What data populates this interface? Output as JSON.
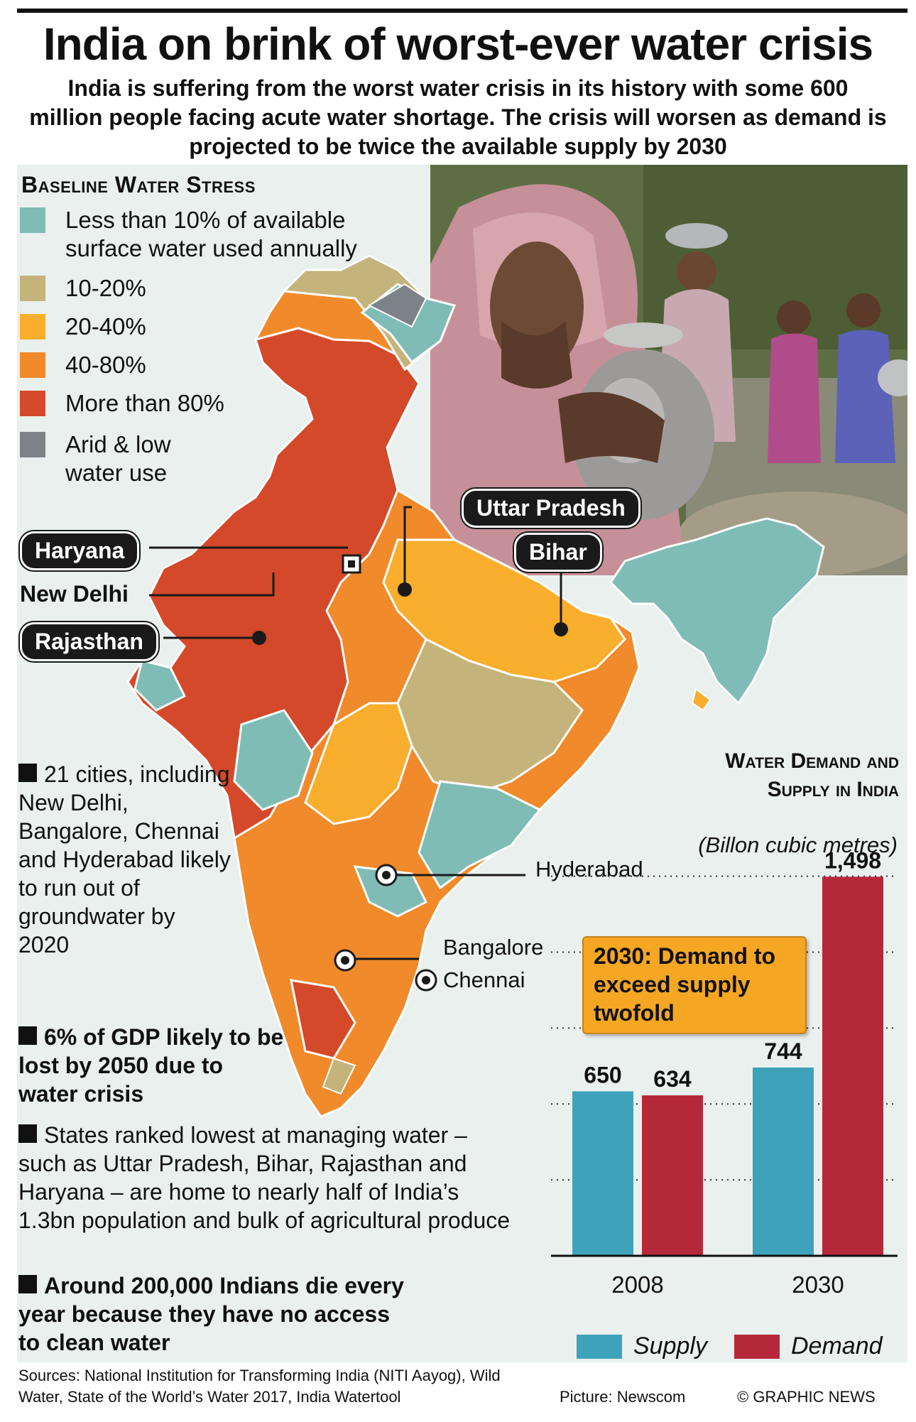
{
  "header": {
    "title": "India on brink of worst-ever water crisis",
    "subtitle": "India is suffering from the worst water crisis in its history with some 600 million people facing acute water shortage. The crisis will worsen as demand is projected to be twice the available supply by 2030"
  },
  "legend": {
    "title": "Baseline Water Stress",
    "items": [
      {
        "label": "Less than 10% of available surface water used annually",
        "color": "#7fbcb5"
      },
      {
        "label": "10-20%",
        "color": "#c4b47c"
      },
      {
        "label": "20-40%",
        "color": "#f9ae2e"
      },
      {
        "label": "40-80%",
        "color": "#f08a2a"
      },
      {
        "label": "More than 80%",
        "color": "#d4492a"
      },
      {
        "label": "Arid & low water use",
        "color": "#7d8288"
      }
    ]
  },
  "map": {
    "states": {
      "haryana": "Haryana",
      "new_delhi": "New Delhi",
      "rajasthan": "Rajasthan",
      "uttar_pradesh": "Uttar Pradesh",
      "bihar": "Bihar"
    },
    "cities": {
      "hyderabad": "Hyderabad",
      "bangalore": "Bangalore",
      "chennai": "Chennai"
    }
  },
  "facts": {
    "f1": "21 cities, including New Delhi, Bangalore, Chennai and Hyderabad likely to run out of groundwater by 2020",
    "f2": "6% of GDP likely to be lost by 2050 due to water crisis",
    "f3": "States ranked lowest at managing water – such as Uttar Pradesh, Bihar, Rajasthan and Haryana – are home to nearly half of India’s 1.3bn population and bulk of agricultural produce",
    "f4": "Around 200,000 Indians die every year because they have no access to clean water"
  },
  "chart_data": {
    "type": "bar",
    "title": "Water Demand and Supply in India",
    "unit": "(Billon cubic metres)",
    "categories": [
      "2008",
      "2030"
    ],
    "series": [
      {
        "name": "Supply",
        "values": [
          650,
          744
        ],
        "color": "#3ea3ba"
      },
      {
        "name": "Demand",
        "values": [
          634,
          1498
        ],
        "color": "#b5283a"
      }
    ],
    "value_labels": [
      "650",
      "634",
      "744",
      "1,498"
    ],
    "ylim": [
      0,
      1600
    ],
    "grid": "dotted horizontal",
    "annotation": "2030: Demand to exceed supply twofold"
  },
  "footer": {
    "sources": "Sources: National Institution for Transforming India (NITI Aayog), Wild Water, State of the World’s Water 2017, India Watertool",
    "picture": "Picture: Newscom",
    "credit": "© GRAPHIC NEWS"
  }
}
